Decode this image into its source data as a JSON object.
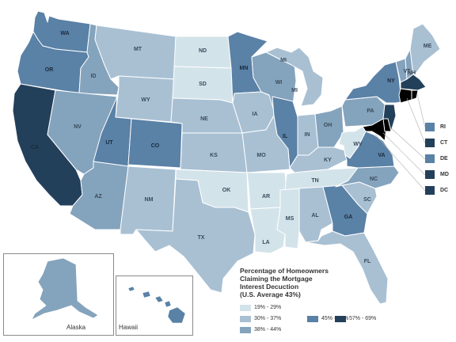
{
  "map": {
    "legend_title": "Percentage of Homeowners\nClaiming the Mortgage\nInterest Decuction\n(U.S. Average 43%)",
    "legend": [
      {
        "range": "19% - 29%",
        "color": "#d3e3ea"
      },
      {
        "range": "30% - 37%",
        "color": "#a9c0d3"
      },
      {
        "range": "38% - 44%",
        "color": "#84a3bd"
      },
      {
        "range": "45% - 56%",
        "color": "#5a81a6"
      },
      {
        "range": "57% - 69%",
        "color": "#23405b"
      }
    ],
    "insets": {
      "alaska": "Alaska",
      "hawaii": "Hawaii"
    },
    "small_states": [
      {
        "code": "RI",
        "color": "#5a81a6"
      },
      {
        "code": "CT",
        "color": "#23405b"
      },
      {
        "code": "DE",
        "color": "#5a81a6"
      },
      {
        "code": "MD",
        "color": "#23405b"
      },
      {
        "code": "DC",
        "color": "#23405b"
      }
    ],
    "states": {
      "WA": "#5a81a6",
      "OR": "#5a81a6",
      "CA": "#23405b",
      "ID": "#84a3bd",
      "NV": "#84a3bd",
      "MT": "#a9c0d3",
      "WY": "#a9c0d3",
      "UT": "#5a81a6",
      "CO": "#5a81a6",
      "AZ": "#84a3bd",
      "NM": "#a9c0d3",
      "ND": "#d3e3ea",
      "SD": "#d3e3ea",
      "NE": "#a9c0d3",
      "KS": "#a9c0d3",
      "OK": "#d3e3ea",
      "TX": "#a9c0d3",
      "MN": "#5a81a6",
      "IA": "#a9c0d3",
      "MO": "#a9c0d3",
      "AR": "#d3e3ea",
      "LA": "#d3e3ea",
      "WI": "#84a3bd",
      "IL": "#5a81a6",
      "MS": "#d3e3ea",
      "MI": "#a9c0d3",
      "IN": "#a9c0d3",
      "KY": "#a9c0d3",
      "TN": "#d3e3ea",
      "AL": "#a9c0d3",
      "OH": "#84a3bd",
      "WV": "#d3e3ea",
      "GA": "#5a81a6",
      "FL": "#a9c0d3",
      "SC": "#a9c0d3",
      "NC": "#84a3bd",
      "VA": "#5a81a6",
      "PA": "#84a3bd",
      "NY": "#5a81a6",
      "VT": "#84a3bd",
      "NH": "#84a3bd",
      "ME": "#a9c0d3",
      "MA": "#23405b",
      "NJ": "#23405b",
      "AK": "#84a3bd",
      "HI": "#5a81a6"
    }
  }
}
